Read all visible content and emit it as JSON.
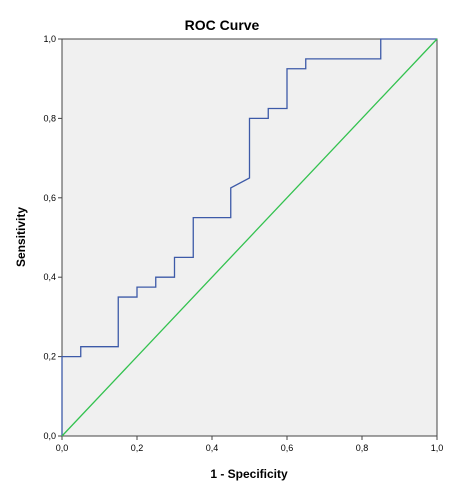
{
  "chart_data": {
    "type": "line",
    "title": "ROC Curve",
    "xlabel": "1 - Specificity",
    "ylabel": "Sensitivity",
    "xlim": [
      0,
      1
    ],
    "ylim": [
      0,
      1
    ],
    "x_ticks": [
      "0,0",
      "0,2",
      "0,4",
      "0,6",
      "0,8",
      "1,0"
    ],
    "y_ticks": [
      "0,0",
      "0,2",
      "0,4",
      "0,6",
      "0,8",
      "1,0"
    ],
    "grid": false,
    "plot_background": "#f0f0f0",
    "series": [
      {
        "color": "#3d5aa8",
        "style": "step",
        "x": [
          0,
          0,
          0.05,
          0.05,
          0.15,
          0.15,
          0.2,
          0.2,
          0.25,
          0.25,
          0.3,
          0.3,
          0.35,
          0.35,
          0.45,
          0.45,
          0.5,
          0.5,
          0.55,
          0.55,
          0.6,
          0.6,
          0.65,
          0.65,
          0.85,
          0.85,
          1.0
        ],
        "y": [
          0,
          0.2,
          0.2,
          0.225,
          0.225,
          0.35,
          0.35,
          0.375,
          0.375,
          0.4,
          0.4,
          0.45,
          0.45,
          0.55,
          0.55,
          0.625,
          0.65,
          0.8,
          0.8,
          0.825,
          0.825,
          0.925,
          0.925,
          0.95,
          0.95,
          1.0,
          1.0
        ]
      },
      {
        "color": "#33c24f",
        "style": "line",
        "x": [
          0,
          1
        ],
        "y": [
          0,
          1
        ]
      }
    ]
  }
}
